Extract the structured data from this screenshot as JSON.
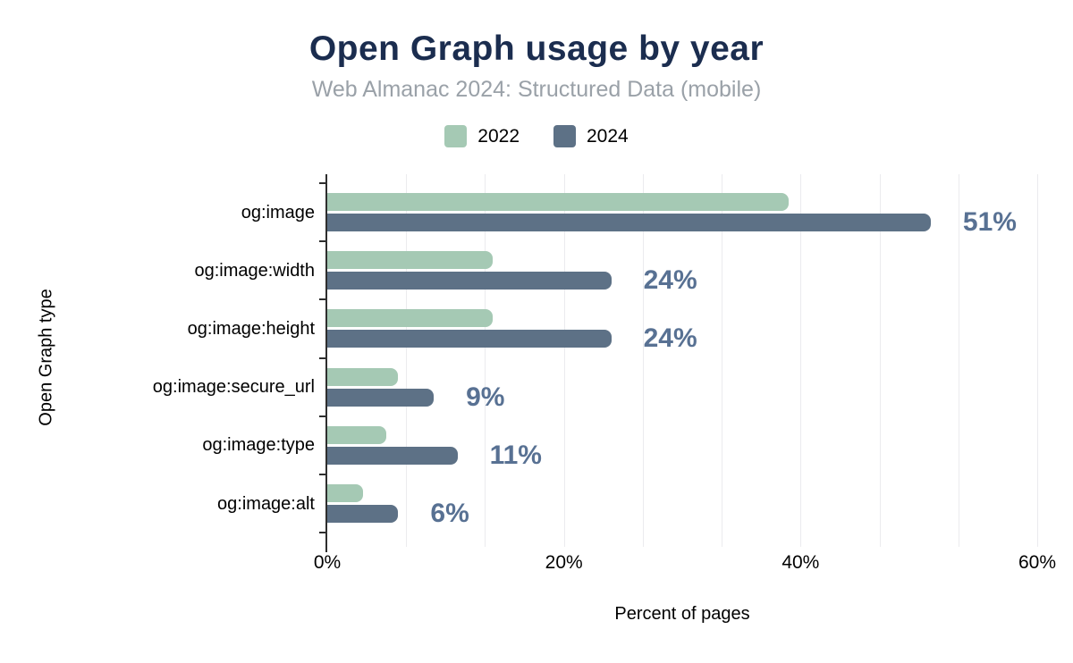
{
  "header": {
    "title": "Open Graph usage by year",
    "subtitle": "Web Almanac 2024: Structured Data (mobile)"
  },
  "legend": {
    "items": [
      {
        "label": "2022",
        "color": "#a5c9b4"
      },
      {
        "label": "2024",
        "color": "#5d7186"
      }
    ]
  },
  "chart_data": {
    "type": "bar",
    "orientation": "horizontal",
    "title": "Open Graph usage by year",
    "subtitle": "Web Almanac 2024: Structured Data (mobile)",
    "xlabel": "Percent of pages",
    "ylabel": "Open Graph type",
    "xlim": [
      0,
      60
    ],
    "x_tick_labels": [
      "0%",
      "20%",
      "40%",
      "60%"
    ],
    "grid": "vertical minor gridlines every 6.67%, on",
    "legend_position": "top center",
    "categories": [
      "og:image",
      "og:image:width",
      "og:image:height",
      "og:image:secure_url",
      "og:image:type",
      "og:image:alt"
    ],
    "series": [
      {
        "name": "2022",
        "color": "#a5c9b4",
        "values": [
          39,
          14,
          14,
          6,
          5,
          3
        ]
      },
      {
        "name": "2024",
        "color": "#5d7186",
        "values": [
          51,
          24,
          24,
          9,
          11,
          6
        ],
        "data_labels": [
          "51%",
          "24%",
          "24%",
          "9%",
          "11%",
          "6%"
        ]
      }
    ]
  },
  "colors": {
    "title": "#1b2d4f",
    "subtitle": "#9aa1a8",
    "value_label": "#587193",
    "axis": "#2e2e2e",
    "gridline": "#ebebee",
    "text": "#000000",
    "background": "#ffffff"
  }
}
